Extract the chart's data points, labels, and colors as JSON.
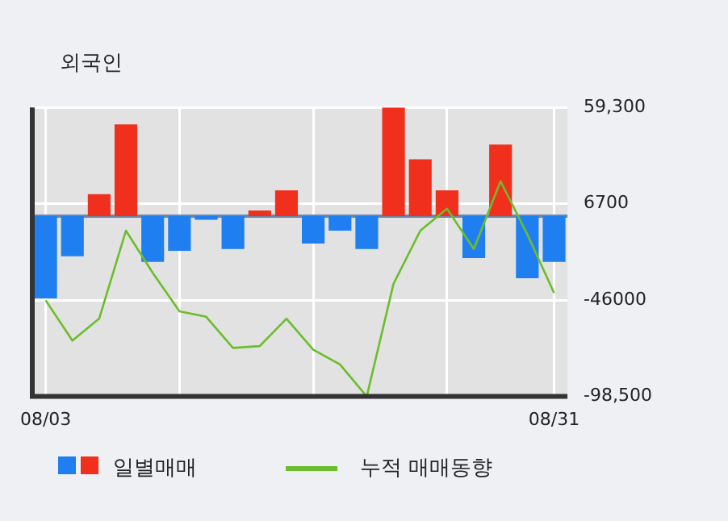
{
  "chart_data": {
    "type": "bar",
    "title": "외국인",
    "categories": [
      "08/03",
      null,
      null,
      null,
      null,
      null,
      null,
      null,
      null,
      null,
      null,
      null,
      null,
      null,
      null,
      null,
      null,
      null,
      null,
      "08/31"
    ],
    "series": [
      {
        "name": "일별매매",
        "colors": [
          "#1f7ff0",
          "#1f7ff0",
          "#f0301c",
          "#f0301c",
          "#1f7ff0",
          "#1f7ff0",
          "#1f7ff0",
          "#1f7ff0",
          "#f0301c",
          "#f0301c",
          "#1f7ff0",
          "#1f7ff0",
          "#1f7ff0",
          "#f0301c",
          "#f0301c",
          "#f0301c",
          "#1f7ff0",
          "#f0301c",
          "#1f7ff0",
          "#1f7ff0"
        ],
        "values": [
          -45000,
          -22000,
          12000,
          50000,
          -25000,
          -19000,
          -2000,
          -18000,
          3000,
          14000,
          -15000,
          -8000,
          -18000,
          59300,
          31000,
          14000,
          -23000,
          39000,
          -34000,
          -25000
        ]
      },
      {
        "name": "누적 매매동향",
        "type": "line",
        "color": "#6cbd2c",
        "values": [
          -46000,
          -68000,
          -56000,
          -8000,
          -31000,
          -52000,
          -55000,
          -72000,
          -71000,
          -56000,
          -73000,
          -81000,
          -98500,
          -37000,
          -8000,
          4000,
          -18000,
          19000,
          -10000,
          -42000
        ]
      }
    ],
    "ylim": [
      -98500,
      59300
    ],
    "yticks": [
      {
        "value": -98500,
        "label": "-98,500"
      },
      -46000,
      6700,
      {
        "value": 59300,
        "label": "59,300"
      }
    ],
    "ref_lines": [
      {
        "axis": "y",
        "value": 0,
        "color": "#6c85a8"
      }
    ],
    "grid": true,
    "legend": "bottom",
    "marker": "none"
  }
}
